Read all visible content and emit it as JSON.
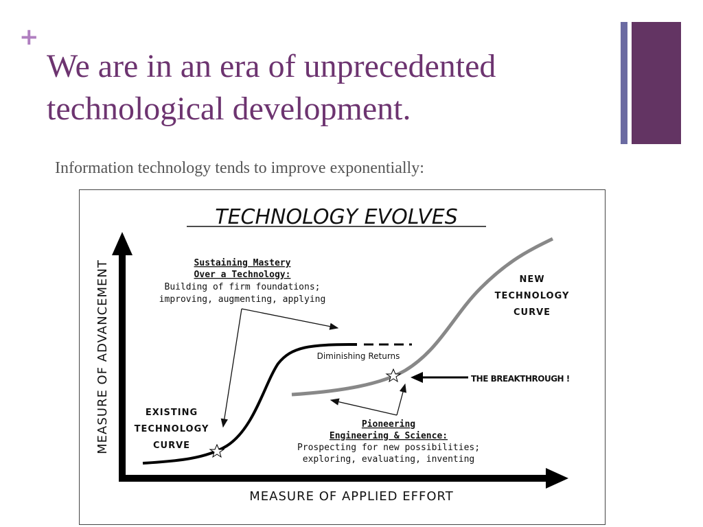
{
  "header": {
    "mark": "+",
    "title_lines": [
      "We are in an era of unprecedented",
      "technological development."
    ],
    "subtitle": "Information technology tends to improve exponentially:"
  },
  "diagram": {
    "title": "TECHNOLOGY EVOLVES",
    "y_axis_label": "MEASURE OF ADVANCEMENT",
    "x_axis_label": "MEASURE OF APPLIED EFFORT",
    "sustaining": [
      "Sustaining Mastery",
      "Over a Technology:",
      "Building of firm foundations;",
      "improving, augmenting, applying"
    ],
    "diminishing": "Diminishing Returns",
    "new_curve": [
      "NEW",
      "TECHNOLOGY",
      "CURVE"
    ],
    "breakthrough": "THE BREAKTHROUGH !",
    "existing_curve": [
      "EXISTING",
      "TECHNOLOGY",
      "CURVE"
    ],
    "pioneering": [
      "Pioneering",
      "Engineering & Science:",
      "Prospecting for new possibilities;",
      "exploring, evaluating, inventing"
    ]
  }
}
